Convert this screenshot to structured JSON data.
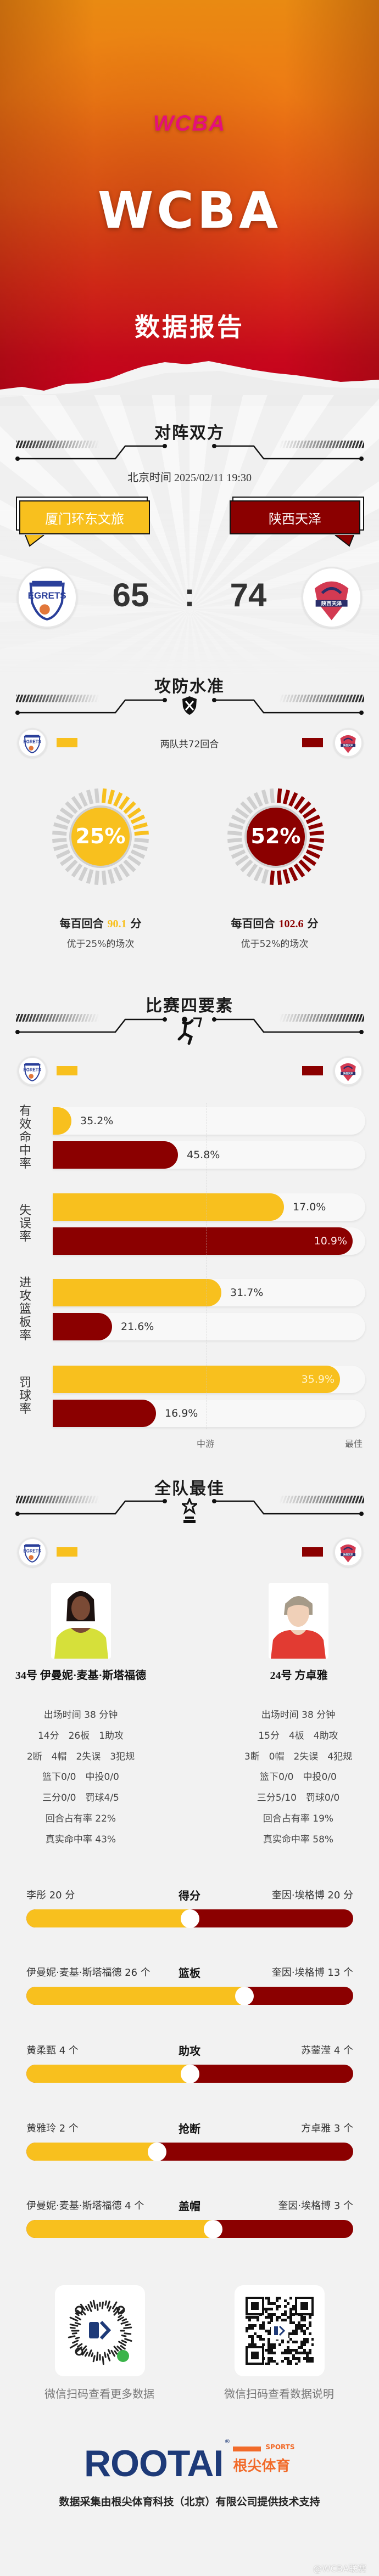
{
  "colors": {
    "home": "#f8c01e",
    "away": "#8b0000",
    "brand_pink": "#e5107a",
    "rootai_navy": "#1e3a78",
    "rootai_orange": "#f26b2a"
  },
  "hero": {
    "logo_text": "WCBA",
    "title": "WCBA",
    "subtitle": "数据报告"
  },
  "matchup": {
    "title": "对阵双方",
    "datetime": "北京时间 2025/02/11 19:30",
    "home": {
      "name": "厦门环东文旅",
      "score": "65",
      "logo_text": "EGRETS"
    },
    "separator": ":",
    "away": {
      "name": "陕西天泽",
      "score": "74",
      "logo_text": "陕西天泽"
    }
  },
  "offense_defense": {
    "title": "攻防水准",
    "icon": "shield-swords-icon",
    "possessions": "两队共72回合",
    "home": {
      "percent_label": "25%",
      "percent": 25,
      "ppr_prefix": "每百回合",
      "ppr_value": "90.1",
      "ppr_suffix": "分",
      "beat": "优于25%的场次"
    },
    "away": {
      "percent_label": "52%",
      "percent": 52,
      "ppr_prefix": "每百回合",
      "ppr_value": "102.6",
      "ppr_suffix": "分",
      "beat": "优于52%的场次"
    }
  },
  "four_factors": {
    "title": "比赛四要素",
    "icon": "dunk-player-icon",
    "scale": {
      "mid": "中游",
      "best": "最佳"
    },
    "rows": [
      {
        "label": "有效命中率",
        "home": {
          "value": "35.2%",
          "fill": 0.06
        },
        "away": {
          "value": "45.8%",
          "fill": 0.4
        }
      },
      {
        "label": "失误率",
        "home": {
          "value": "17.0%",
          "fill": 0.74
        },
        "away": {
          "value": "10.9%",
          "fill": 0.96
        }
      },
      {
        "label": "进攻篮板率",
        "home": {
          "value": "31.7%",
          "fill": 0.54
        },
        "away": {
          "value": "21.6%",
          "fill": 0.19
        }
      },
      {
        "label": "罚球率",
        "home": {
          "value": "35.9%",
          "fill": 0.92
        },
        "away": {
          "value": "16.9%",
          "fill": 0.33
        }
      }
    ]
  },
  "best_players": {
    "title": "全队最佳",
    "icon": "trophy-star-icon",
    "home": {
      "name": "34号 伊曼妮·麦基·斯塔福德",
      "lines": [
        "出场时间 38 分钟",
        "14分　26板　1助攻",
        "2断　4帽　2失误　3犯规",
        "篮下0/0　中投0/0",
        "三分0/0　罚球4/5",
        "回合占有率 22%",
        "真实命中率 43%"
      ]
    },
    "away": {
      "name": "24号 方卓雅",
      "lines": [
        "出场时间 38 分钟",
        "15分　4板　4助攻",
        "3断　0帽　2失误　4犯规",
        "篮下0/0　中投0/0",
        "三分5/10　罚球0/0",
        "回合占有率 19%",
        "真实命中率 58%"
      ]
    }
  },
  "leaders": [
    {
      "category": "得分",
      "home_text": "李彤 20 分",
      "home_value": 20,
      "away_text": "奎因·埃格博 20 分",
      "away_value": 20
    },
    {
      "category": "篮板",
      "home_text": "伊曼妮·麦基·斯塔福德 26 个",
      "home_value": 26,
      "away_text": "奎因·埃格博 13 个",
      "away_value": 13
    },
    {
      "category": "助攻",
      "home_text": "黄柔甄 4 个",
      "home_value": 4,
      "away_text": "苏蓥滢 4 个",
      "away_value": 4
    },
    {
      "category": "抢断",
      "home_text": "黄雅玲 2 个",
      "home_value": 2,
      "away_text": "方卓雅 3 个",
      "away_value": 3
    },
    {
      "category": "盖帽",
      "home_text": "伊曼妮·麦基·斯塔福德 4 个",
      "home_value": 4,
      "away_text": "奎因·埃格博 3 个",
      "away_value": 3
    }
  ],
  "footer": {
    "qr_left_caption": "微信扫码查看更多数据",
    "qr_right_caption": "微信扫码查看数据说明",
    "brand": "ROOTAI",
    "brand_sports": "SPORTS",
    "brand_cn": "根尖体育",
    "credit": "数据采集由根尖体育科技（北京）有限公司提供技术支持",
    "watermark": "@WCBA联赛"
  }
}
